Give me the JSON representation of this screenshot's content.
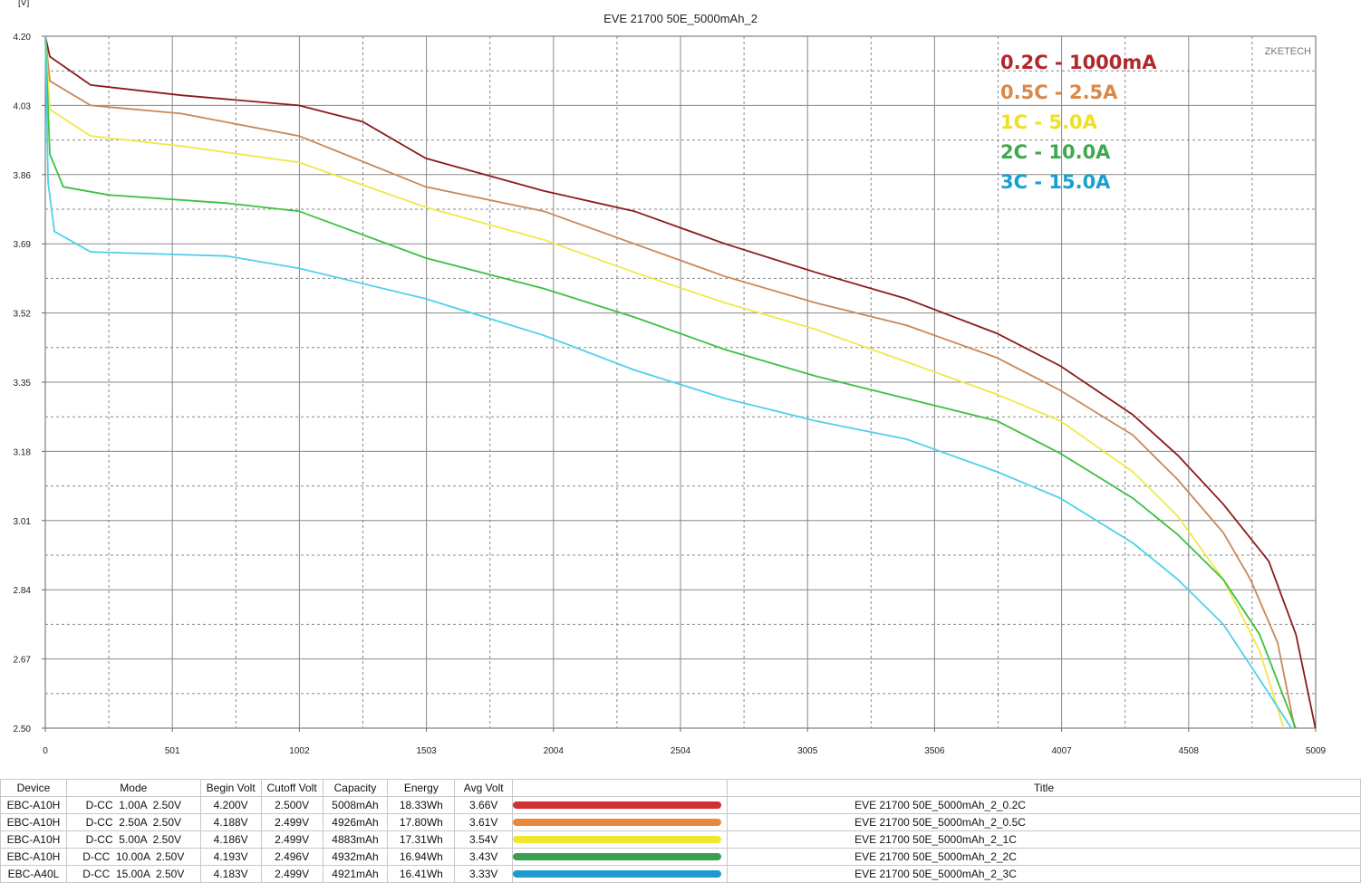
{
  "chart_data": {
    "type": "line",
    "title": "EVE 21700 50E_5000mAh_2",
    "ylabel": "[V]",
    "xlabel": "",
    "watermark": "ZKETECH",
    "xlim": [
      0,
      5009
    ],
    "ylim": [
      2.5,
      4.2
    ],
    "xticks": [
      "0",
      "501",
      "1002",
      "1503",
      "2004",
      "2504",
      "3005",
      "3506",
      "4007",
      "4508",
      "5009"
    ],
    "yticks": [
      "4.20",
      "4.03",
      "3.86",
      "3.69",
      "3.52",
      "3.35",
      "3.18",
      "3.01",
      "2.84",
      "2.67",
      "2.50"
    ],
    "grid": true,
    "legend_position": "top-right",
    "series": [
      {
        "name": "0.2C - 1000mA",
        "line_color": "#8b1a1a",
        "label_color": "#b0282a",
        "x": [
          0,
          18,
          179,
          536,
          1000,
          1251,
          1500,
          1965,
          2322,
          2680,
          3037,
          3395,
          3752,
          4002,
          4288,
          4466,
          4645,
          4824,
          4931,
          5008
        ],
        "y": [
          4.2,
          4.15,
          4.08,
          4.055,
          4.03,
          3.99,
          3.9,
          3.82,
          3.77,
          3.69,
          3.62,
          3.555,
          3.47,
          3.39,
          3.27,
          3.17,
          3.05,
          2.91,
          2.73,
          2.5
        ]
      },
      {
        "name": "0.5C - 2.5A",
        "line_color": "#c8885a",
        "label_color": "#d8884a",
        "x": [
          0,
          18,
          179,
          536,
          1000,
          1500,
          1965,
          2322,
          2680,
          3037,
          3395,
          3752,
          4002,
          4288,
          4466,
          4645,
          4752,
          4859,
          4926
        ],
        "y": [
          4.2,
          4.09,
          4.03,
          4.01,
          3.955,
          3.83,
          3.77,
          3.69,
          3.61,
          3.545,
          3.49,
          3.41,
          3.33,
          3.22,
          3.11,
          2.98,
          2.865,
          2.71,
          2.5
        ]
      },
      {
        "name": "1C - 5.0A",
        "line_color": "#f0e84a",
        "label_color": "#f0e020",
        "x": [
          0,
          18,
          179,
          536,
          1000,
          1500,
          1965,
          2322,
          2680,
          3037,
          3395,
          3752,
          4002,
          4288,
          4466,
          4645,
          4788,
          4883
        ],
        "y": [
          4.2,
          4.02,
          3.955,
          3.93,
          3.89,
          3.78,
          3.7,
          3.62,
          3.545,
          3.48,
          3.4,
          3.32,
          3.255,
          3.13,
          3.02,
          2.865,
          2.69,
          2.5
        ]
      },
      {
        "name": "2C - 10.0A",
        "line_color": "#3cc040",
        "label_color": "#40a850",
        "x": [
          0,
          18,
          71,
          250,
          715,
          1000,
          1500,
          1965,
          2322,
          2680,
          3037,
          3395,
          3752,
          4002,
          4288,
          4466,
          4645,
          4788,
          4930
        ],
        "y": [
          4.2,
          3.91,
          3.83,
          3.81,
          3.79,
          3.77,
          3.655,
          3.58,
          3.51,
          3.43,
          3.365,
          3.31,
          3.255,
          3.175,
          3.065,
          2.975,
          2.865,
          2.73,
          2.5
        ]
      },
      {
        "name": "3C - 15.0A",
        "line_color": "#50d0e8",
        "label_color": "#1aa0d0",
        "x": [
          0,
          11,
          36,
          179,
          715,
          1000,
          1500,
          1965,
          2322,
          2680,
          3037,
          3395,
          3752,
          4002,
          4288,
          4466,
          4645,
          4788,
          4913
        ],
        "y": [
          4.2,
          3.84,
          3.72,
          3.67,
          3.66,
          3.63,
          3.555,
          3.465,
          3.38,
          3.31,
          3.255,
          3.21,
          3.13,
          3.065,
          2.955,
          2.865,
          2.755,
          2.62,
          2.5
        ]
      }
    ]
  },
  "table": {
    "headers": [
      "Device",
      "Mode",
      "Begin Volt",
      "Cutoff Volt",
      "Capacity",
      "Energy",
      "Avg Volt",
      "Title"
    ],
    "rows": [
      {
        "device": "EBC-A10H",
        "mode": "D-CC  1.00A  2.50V",
        "begin": "4.200V",
        "cutoff": "2.500V",
        "capacity": "5008mAh",
        "energy": "18.33Wh",
        "avg": "3.66V",
        "color": "#d03030",
        "title": "EVE 21700 50E_5000mAh_2_0.2C"
      },
      {
        "device": "EBC-A10H",
        "mode": "D-CC  2.50A  2.50V",
        "begin": "4.188V",
        "cutoff": "2.499V",
        "capacity": "4926mAh",
        "energy": "17.80Wh",
        "avg": "3.61V",
        "color": "#e8883a",
        "title": "EVE 21700 50E_5000mAh_2_0.5C"
      },
      {
        "device": "EBC-A10H",
        "mode": "D-CC  5.00A  2.50V",
        "begin": "4.186V",
        "cutoff": "2.499V",
        "capacity": "4883mAh",
        "energy": "17.31Wh",
        "avg": "3.54V",
        "color": "#f0e830",
        "title": "EVE 21700 50E_5000mAh_2_1C"
      },
      {
        "device": "EBC-A10H",
        "mode": "D-CC  10.00A  2.50V",
        "begin": "4.193V",
        "cutoff": "2.496V",
        "capacity": "4932mAh",
        "energy": "16.94Wh",
        "avg": "3.43V",
        "color": "#3aa050",
        "title": "EVE 21700 50E_5000mAh_2_2C"
      },
      {
        "device": "EBC-A40L",
        "mode": "D-CC  15.00A  2.50V",
        "begin": "4.183V",
        "cutoff": "2.499V",
        "capacity": "4921mAh",
        "energy": "16.41Wh",
        "avg": "3.33V",
        "color": "#1e9ad0",
        "title": "EVE 21700 50E_5000mAh_2_3C"
      }
    ]
  }
}
